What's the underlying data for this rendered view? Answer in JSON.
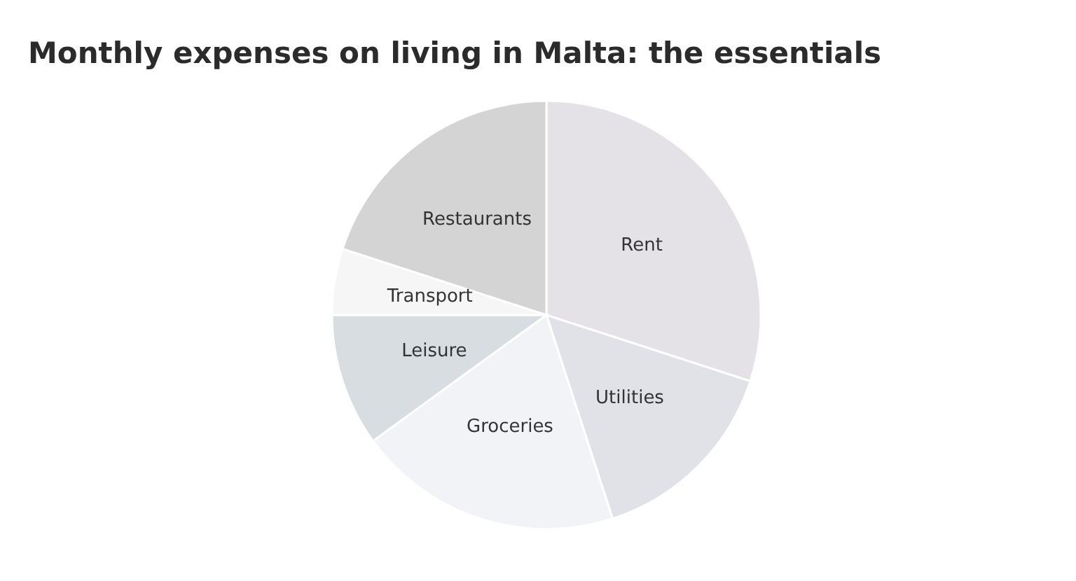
{
  "chart_data": {
    "type": "pie",
    "title": "Monthly expenses on living in Malta: the essentials",
    "categories": [
      "Rent",
      "Utilities",
      "Groceries",
      "Leisure",
      "Transport",
      "Restaurants"
    ],
    "values": [
      30,
      15,
      20,
      10,
      5,
      20
    ],
    "colors": [
      "#e4e2e7",
      "#e0e2e8",
      "#f1f3f6",
      "#d8dde2",
      "#f6f6f6",
      "#d4d4d4"
    ],
    "legend": false
  }
}
